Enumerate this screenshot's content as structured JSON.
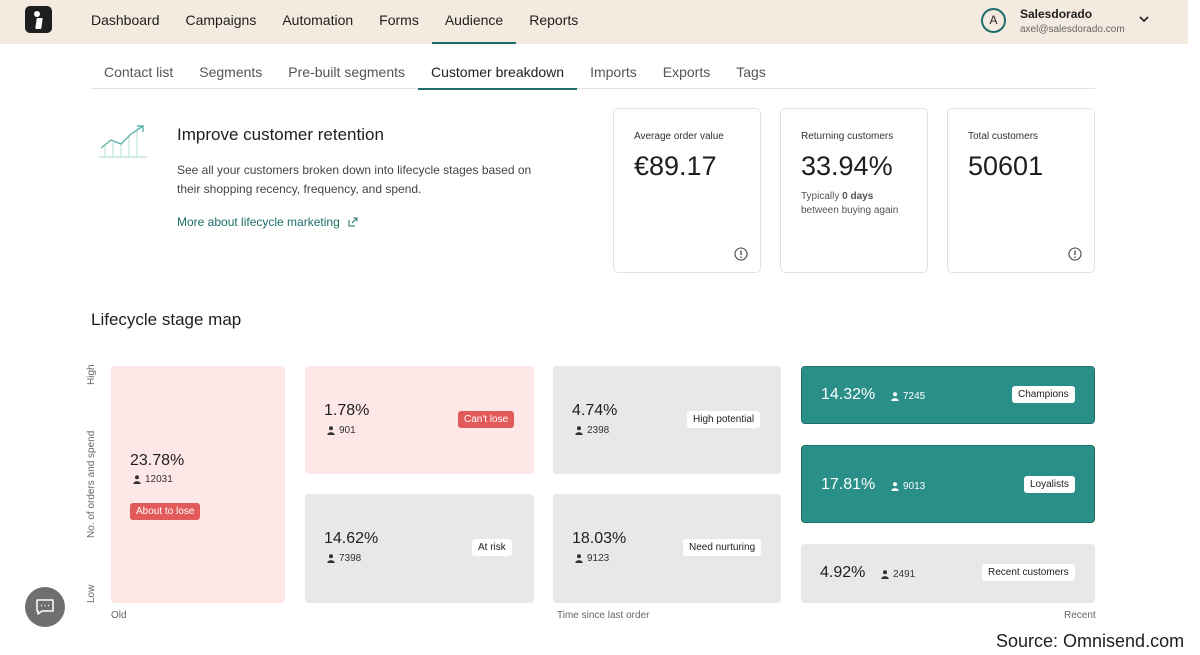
{
  "topnav": {
    "items": [
      "Dashboard",
      "Campaigns",
      "Automation",
      "Forms",
      "Audience",
      "Reports"
    ],
    "active": "Audience"
  },
  "account": {
    "initial": "A",
    "name": "Salesdorado",
    "email": "axel@salesdorado.com"
  },
  "subtabs": {
    "items": [
      "Contact list",
      "Segments",
      "Pre-built segments",
      "Customer breakdown",
      "Imports",
      "Exports",
      "Tags"
    ],
    "active": "Customer breakdown"
  },
  "intro": {
    "title": "Improve customer retention",
    "text": "See all your customers broken down into lifecycle stages based on their shopping recency, frequency, and spend.",
    "link": "More about lifecycle marketing"
  },
  "stats": {
    "aov": {
      "label": "Average order value",
      "value": "€89.17"
    },
    "returning": {
      "label": "Returning customers",
      "value": "33.94%",
      "note_prefix": "Typically ",
      "note_days": "0 days",
      "note_suffix": "between buying again"
    },
    "total": {
      "label": "Total customers",
      "value": "50601"
    }
  },
  "map": {
    "title": "Lifecycle stage map",
    "y_high": "High",
    "y_label": "No. of orders and spend",
    "y_low": "Low",
    "x_old": "Old",
    "x_label": "Time since last order",
    "x_recent": "Recent",
    "segments": {
      "about_to_lose": {
        "pct": "23.78%",
        "count": "12031",
        "label": "About to lose"
      },
      "cant_lose": {
        "pct": "1.78%",
        "count": "901",
        "label": "Can't lose"
      },
      "at_risk": {
        "pct": "14.62%",
        "count": "7398",
        "label": "At risk"
      },
      "high_potential": {
        "pct": "4.74%",
        "count": "2398",
        "label": "High potential"
      },
      "need_nurturing": {
        "pct": "18.03%",
        "count": "9123",
        "label": "Need nurturing"
      },
      "champions": {
        "pct": "14.32%",
        "count": "7245",
        "label": "Champions"
      },
      "loyalists": {
        "pct": "17.81%",
        "count": "9013",
        "label": "Loyalists"
      },
      "recent": {
        "pct": "4.92%",
        "count": "2491",
        "label": "Recent customers"
      }
    }
  },
  "source": "Source: Omnisend.com",
  "colors": {
    "accent": "#1d6e6a",
    "teal": "#2a8f88",
    "pink": "#fde8e7",
    "red_badge": "#e25a5a",
    "topbar": "#f4eae0"
  },
  "icons": [
    "logo-icon",
    "chevron-down-icon",
    "chart-growth-icon",
    "external-link-icon",
    "info-icon",
    "person-icon",
    "chat-icon"
  ]
}
